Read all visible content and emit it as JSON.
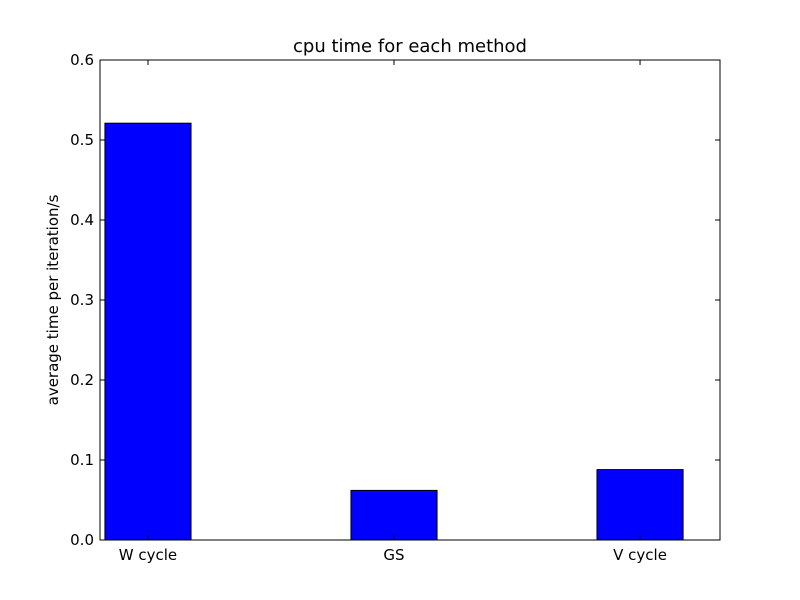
{
  "chart_data": {
    "type": "bar",
    "title": "cpu time for each method",
    "xlabel": "",
    "ylabel": "average time per iteration/s",
    "categories": [
      "W cycle",
      "GS",
      "V cycle"
    ],
    "values": [
      0.521,
      0.062,
      0.088
    ],
    "ylim": [
      0,
      0.6
    ],
    "yticks": [
      "0.0",
      "0.1",
      "0.2",
      "0.3",
      "0.4",
      "0.5",
      "0.6"
    ],
    "bar_color": "#0000ff",
    "grid": false
  }
}
